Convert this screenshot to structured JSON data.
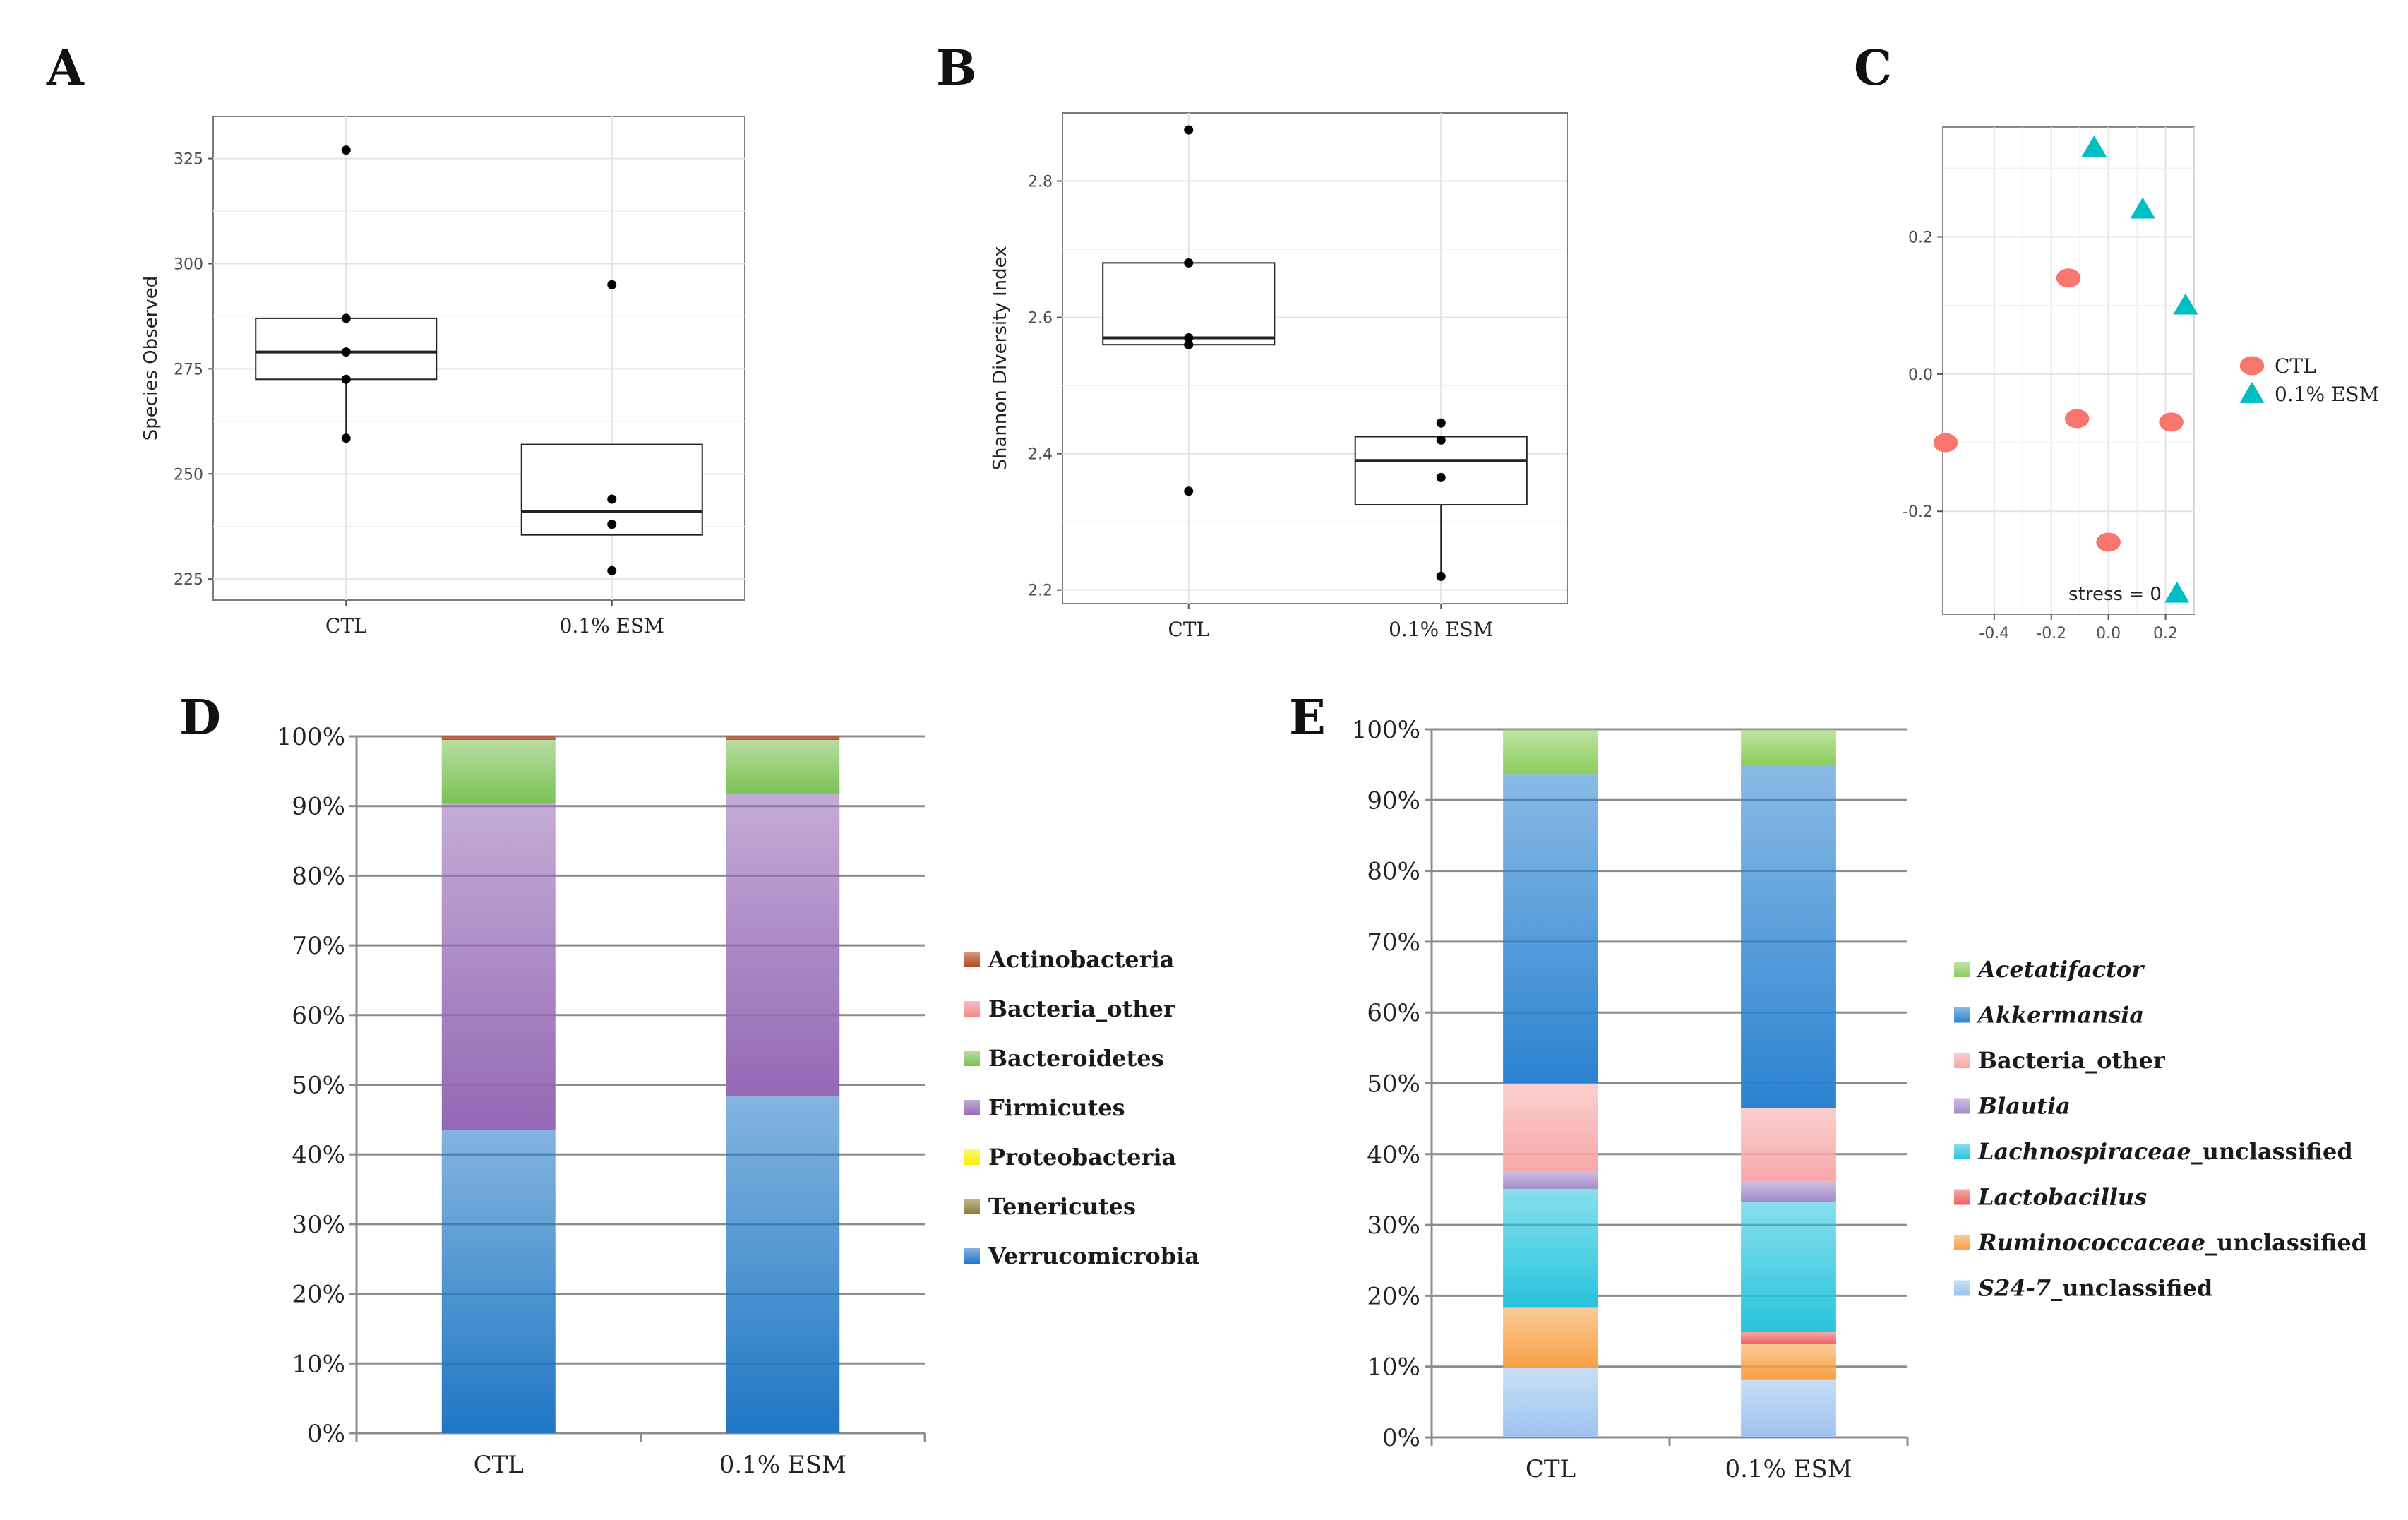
{
  "panel_letters": [
    "A",
    "B",
    "C",
    "D",
    "E"
  ],
  "chart_data": [
    {
      "panel": "A",
      "type": "box",
      "ylabel": "Species Observed",
      "categories": [
        "CTL",
        "0.1% ESM"
      ],
      "ylim": [
        220,
        335
      ],
      "yticks": [
        225,
        250,
        275,
        300,
        325
      ],
      "boxes": [
        {
          "name": "CTL",
          "q1": 272.5,
          "median": 279,
          "q3": 287,
          "whisker_low": 258.5,
          "whisker_high": 287,
          "points": [
            327,
            287,
            279,
            272.5,
            258.5
          ]
        },
        {
          "name": "0.1% ESM",
          "q1": 235.5,
          "median": 241,
          "q3": 257,
          "whisker_low": 235.5,
          "whisker_high": 257,
          "points": [
            295,
            244,
            238,
            227
          ]
        }
      ]
    },
    {
      "panel": "B",
      "type": "box",
      "ylabel": "Shannon Diversity Index",
      "categories": [
        "CTL",
        "0.1% ESM"
      ],
      "ylim": [
        2.18,
        2.9
      ],
      "yticks": [
        "2.2",
        "2.4",
        "2.6",
        "2.8"
      ],
      "boxes": [
        {
          "name": "CTL",
          "q1": 2.56,
          "median": 2.57,
          "q3": 2.68,
          "whisker_low": 2.56,
          "whisker_high": 2.68,
          "points": [
            2.875,
            2.68,
            2.57,
            2.56,
            2.345
          ]
        },
        {
          "name": "0.1% ESM",
          "q1": 2.325,
          "median": 2.39,
          "q3": 2.425,
          "whisker_low": 2.22,
          "whisker_high": 2.425,
          "points": [
            2.445,
            2.42,
            2.365,
            2.22
          ]
        }
      ]
    },
    {
      "panel": "C",
      "type": "scatter",
      "xticks": [
        "-0.4",
        "-0.2",
        "0.0",
        "0.2"
      ],
      "yticks": [
        "-0.2",
        "0.0",
        "0.2"
      ],
      "xlim": [
        -0.58,
        0.3
      ],
      "ylim": [
        -0.35,
        0.36
      ],
      "annotation": "stress = 0",
      "series": [
        {
          "name": "CTL",
          "color": "#f8766d",
          "marker": "circle",
          "points": [
            [
              -0.57,
              -0.1
            ],
            [
              -0.14,
              0.14
            ],
            [
              -0.11,
              -0.065
            ],
            [
              0.0,
              -0.245
            ],
            [
              0.22,
              -0.07
            ]
          ]
        },
        {
          "name": "0.1% ESM",
          "color": "#00bfc4",
          "marker": "triangle",
          "points": [
            [
              -0.05,
              0.33
            ],
            [
              0.12,
              0.24
            ],
            [
              0.27,
              0.1
            ],
            [
              0.24,
              -0.32
            ]
          ]
        }
      ],
      "legend": [
        "CTL",
        "0.1% ESM"
      ]
    },
    {
      "panel": "D",
      "type": "bar",
      "stacked": true,
      "categories": [
        "CTL",
        "0.1% ESM"
      ],
      "yticks": [
        "0%",
        "10%",
        "20%",
        "30%",
        "40%",
        "50%",
        "60%",
        "70%",
        "80%",
        "90%",
        "100%"
      ],
      "ylim": [
        0,
        100
      ],
      "series": [
        {
          "name": "Verrucomicrobia",
          "italic": false,
          "color": "#1f77c4",
          "values": [
            43.5,
            48.3
          ]
        },
        {
          "name": "Tenericutes",
          "italic": false,
          "color": "#8c7a3a",
          "values": [
            0.0,
            0.0
          ]
        },
        {
          "name": "Proteobacteria",
          "italic": false,
          "color": "#ffee00",
          "values": [
            0.0,
            0.0
          ]
        },
        {
          "name": "Firmicutes",
          "italic": false,
          "color": "#9468b5",
          "values": [
            46.8,
            43.5
          ]
        },
        {
          "name": "Bacteroidetes",
          "italic": false,
          "color": "#7cc255",
          "values": [
            9.2,
            7.7
          ]
        },
        {
          "name": "Bacteria_other",
          "italic": false,
          "color": "#f28a8a",
          "values": [
            0.0,
            0.0
          ]
        },
        {
          "name": "Actinobacteria",
          "italic": false,
          "color": "#b8451c",
          "values": [
            0.5,
            0.5
          ]
        }
      ],
      "legend_order": [
        "Actinobacteria",
        "Bacteria_other",
        "Bacteroidetes",
        "Firmicutes",
        "Proteobacteria",
        "Tenericutes",
        "Verrucomicrobia"
      ]
    },
    {
      "panel": "E",
      "type": "bar",
      "stacked": true,
      "categories": [
        "CTL",
        "0.1% ESM"
      ],
      "yticks": [
        "0%",
        "10%",
        "20%",
        "30%",
        "40%",
        "50%",
        "60%",
        "70%",
        "80%",
        "90%",
        "100%"
      ],
      "ylim": [
        0,
        100
      ],
      "series": [
        {
          "name": "S24-7_unclassified",
          "italic_part": "S24-7",
          "plain_part": "_unclassified",
          "color": "#9cc3f0",
          "values": [
            9.8,
            8.2
          ]
        },
        {
          "name": "Ruminococcaceae_unclassified",
          "italic_part": "Ruminococcaceae",
          "plain_part": "_unclassified",
          "color": "#f7a044",
          "values": [
            8.5,
            5.0
          ]
        },
        {
          "name": "Lactobacillus",
          "italic_part": "Lactobacillus",
          "plain_part": "",
          "color": "#f06060",
          "values": [
            0.0,
            1.7
          ]
        },
        {
          "name": "Lachnospiraceae_unclassified",
          "italic_part": "Lachnospiraceae",
          "plain_part": "_unclassified",
          "color": "#27c4dd",
          "values": [
            16.8,
            18.4
          ]
        },
        {
          "name": "Blautia",
          "italic_part": "Blautia",
          "plain_part": "",
          "color": "#a58bc9",
          "values": [
            2.5,
            2.9
          ]
        },
        {
          "name": "Bacteria_other",
          "italic_part": "",
          "plain_part": "Bacteria_other",
          "color": "#f7a8a8",
          "values": [
            12.4,
            10.3
          ]
        },
        {
          "name": "Akkermansia",
          "italic_part": "Akkermansia",
          "plain_part": "",
          "color": "#2a82d0",
          "values": [
            43.6,
            48.5
          ]
        },
        {
          "name": "Acetatifactor",
          "italic_part": "Acetatifactor",
          "plain_part": "",
          "color": "#8ccd5c",
          "values": [
            6.4,
            5.0
          ]
        }
      ],
      "legend_order": [
        "Acetatifactor",
        "Akkermansia",
        "Bacteria_other",
        "Blautia",
        "Lachnospiraceae_unclassified",
        "Lactobacillus",
        "Ruminococcaceae_unclassified",
        "S24-7_unclassified"
      ]
    }
  ]
}
